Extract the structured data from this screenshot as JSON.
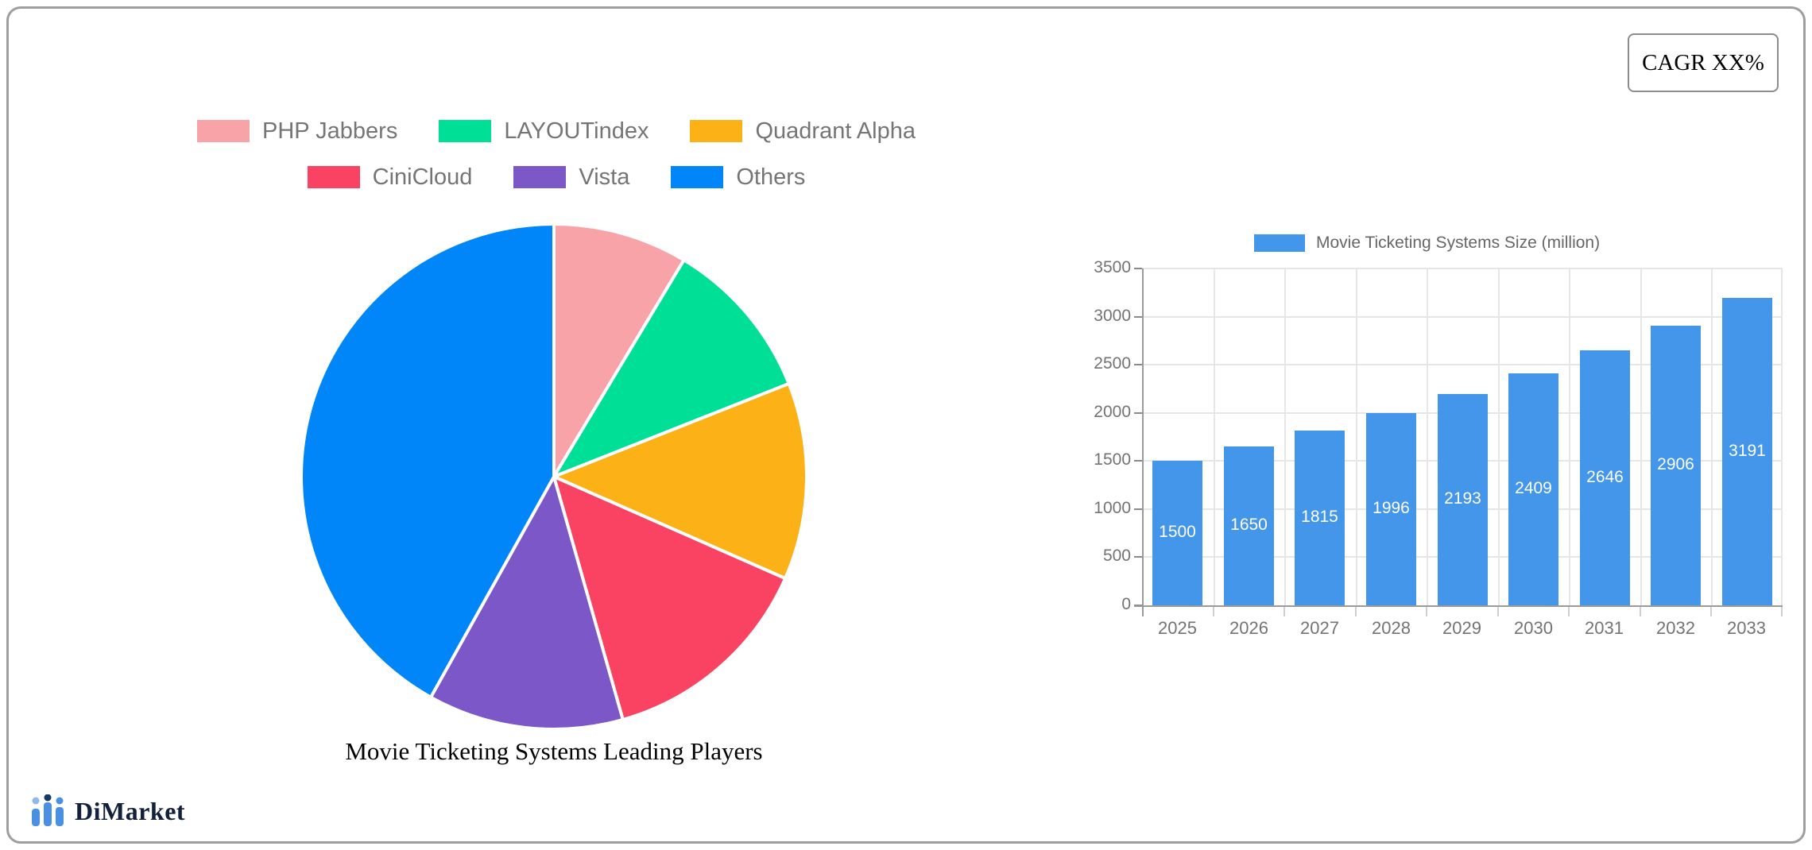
{
  "cagr_badge": {
    "label": "CAGR XX%"
  },
  "logo": {
    "text": "DiMarket",
    "icon": "dimarket-bars-logo-icon",
    "bar_color": "#4A90E2",
    "dot_colors": [
      "#8FB8EE",
      "#1B3764",
      "#4A90E2"
    ],
    "text_color": "#12203C"
  },
  "colors": {
    "card_border": "#9E9E9E",
    "grid": "#E6E6E6",
    "axis": "#9A9A9A",
    "tick_text": "#737373",
    "pie_legend_text": "#757575",
    "bar_legend_text": "#666666"
  },
  "chart_data": [
    {
      "type": "pie",
      "title": "Movie Ticketing Systems Leading Players",
      "labels": [
        "PHP Jabbers",
        "LAYOUTindex",
        "Quadrant Alpha",
        "CiniCloud",
        "Vista",
        "Others"
      ],
      "values_pct": [
        8.6,
        10.4,
        12.6,
        14.0,
        12.5,
        41.9
      ],
      "colors": [
        "#F8A3A8",
        "#00DF96",
        "#FCB116",
        "#FA4263",
        "#7B57C8",
        "#0086F8"
      ],
      "start_angle_deg": 0,
      "direction": "clockwise",
      "legend_rows": 2,
      "slice_border_color": "#FFFFFF"
    },
    {
      "type": "bar",
      "legend_label": "Movie Ticketing Systems Size (million)",
      "legend_position": "top",
      "categories": [
        "2025",
        "2026",
        "2027",
        "2028",
        "2029",
        "2030",
        "2031",
        "2032",
        "2033"
      ],
      "values": [
        1500,
        1650,
        1815,
        1996,
        2193,
        2409,
        2646,
        2906,
        3191
      ],
      "bar_color": "#4496EA",
      "value_label_color": "#FFFFFF",
      "ylim": [
        0,
        3500
      ],
      "yticks": [
        0,
        500,
        1000,
        1500,
        2000,
        2500,
        3000,
        3500
      ],
      "grid": true
    }
  ]
}
